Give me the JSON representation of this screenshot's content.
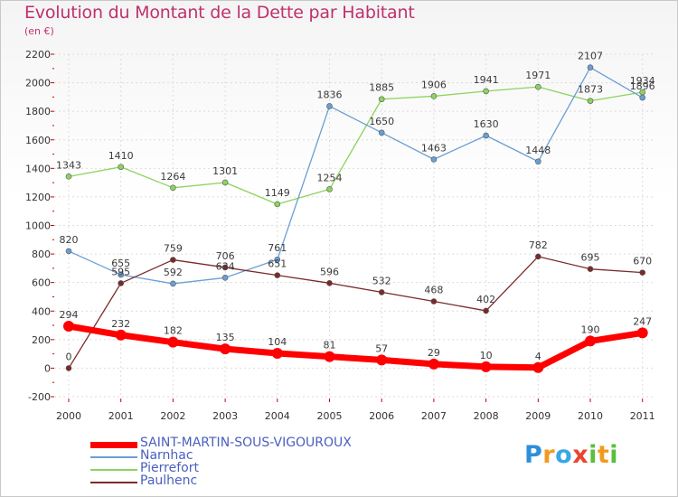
{
  "title": "Evolution du Montant de la Dette par Habitant",
  "unit_label": "(en €)",
  "logo_text": "Proxiti",
  "chart_data": {
    "type": "line",
    "title": "Evolution du Montant de la Dette par Habitant",
    "ylabel": "(en €)",
    "xlabel": "",
    "x": [
      "2000",
      "2001",
      "2002",
      "2003",
      "2004",
      "2005",
      "2006",
      "2007",
      "2008",
      "2009",
      "2010",
      "2011"
    ],
    "ylim": [
      -200,
      2200
    ],
    "yticks": [
      -200,
      0,
      200,
      400,
      600,
      800,
      1000,
      1200,
      1400,
      1600,
      1800,
      2000,
      2200
    ],
    "grid": true,
    "legend_position": "bottom-left",
    "series": [
      {
        "name": "SAINT-MARTIN-SOUS-VIGOUROUX",
        "color": "#ff0000",
        "values": [
          294,
          232,
          182,
          135,
          104,
          81,
          57,
          29,
          10,
          4,
          190,
          247
        ],
        "labels": [
          "294",
          "232",
          "182",
          "135",
          "104",
          "81",
          "57",
          "29",
          "10",
          "4",
          "190",
          "247"
        ]
      },
      {
        "name": "Narnhac",
        "color": "#6a9fd4",
        "values": [
          820,
          655,
          592,
          634,
          761,
          1836,
          1650,
          1463,
          1630,
          1448,
          2107,
          1896
        ],
        "labels": [
          "820",
          "655",
          "592",
          "634",
          "761",
          "1836",
          "1650",
          "1463",
          "1630",
          "1448",
          "2107",
          "1896"
        ]
      },
      {
        "name": "Pierrefort",
        "color": "#8dd35f",
        "values": [
          1343,
          1410,
          1264,
          1301,
          1149,
          1254,
          1885,
          1906,
          1941,
          1971,
          1873,
          1934
        ],
        "labels": [
          "1343",
          "1410",
          "1264",
          "1301",
          "1149",
          "1254",
          "1885",
          "1906",
          "1941",
          "1971",
          "1873",
          "1934"
        ]
      },
      {
        "name": "Paulhenc",
        "color": "#7a2a2a",
        "values": [
          0,
          595,
          759,
          706,
          651,
          596,
          532,
          468,
          402,
          782,
          695,
          670
        ],
        "labels": [
          "0",
          "595",
          "759",
          "706",
          "651",
          "596",
          "532",
          "468",
          "402",
          "782",
          "695",
          "670"
        ]
      }
    ]
  }
}
